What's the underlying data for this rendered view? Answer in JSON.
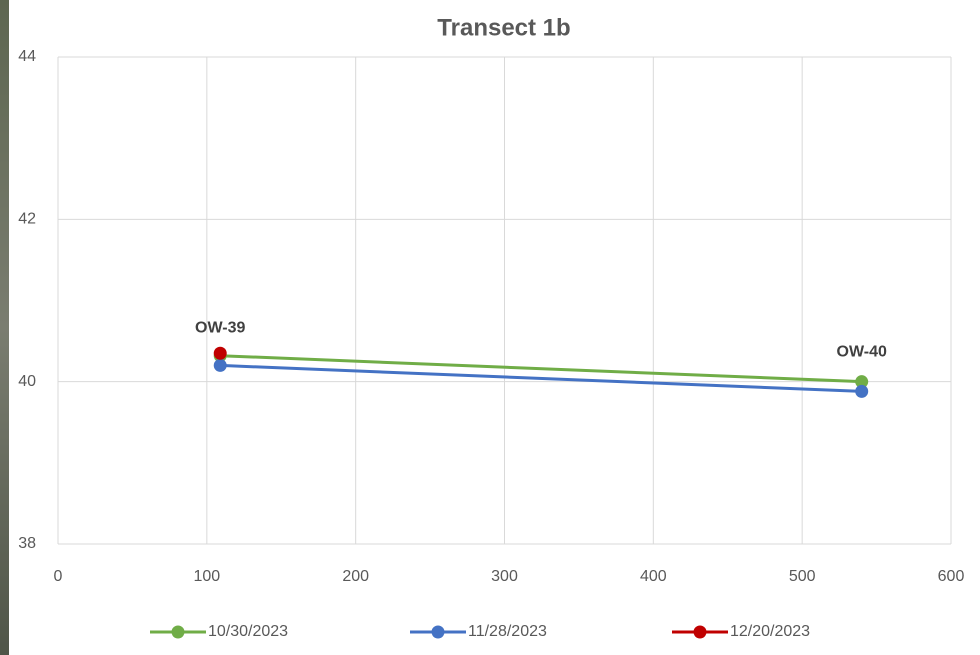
{
  "chart_data": {
    "type": "line",
    "title": "Transect 1b",
    "x": [
      109,
      540
    ],
    "series": [
      {
        "name": "10/30/2023",
        "color": "#70ad47",
        "values": [
          40.32,
          40.0
        ]
      },
      {
        "name": "11/28/2023",
        "color": "#4472c4",
        "values": [
          40.2,
          39.88
        ]
      },
      {
        "name": "12/20/2023",
        "color": "#c00000",
        "values": [
          40.35,
          null
        ]
      }
    ],
    "annotations": [
      {
        "text": "OW-39",
        "x": 109,
        "y": 40.66
      },
      {
        "text": "OW-40",
        "x": 540,
        "y": 40.36
      }
    ],
    "xlim": [
      0,
      600
    ],
    "xticks": [
      0,
      100,
      200,
      300,
      400,
      500,
      600
    ],
    "ylim": [
      38,
      44
    ],
    "yticks": [
      38,
      40,
      42,
      44
    ],
    "grid": true,
    "legend": "bottom"
  }
}
